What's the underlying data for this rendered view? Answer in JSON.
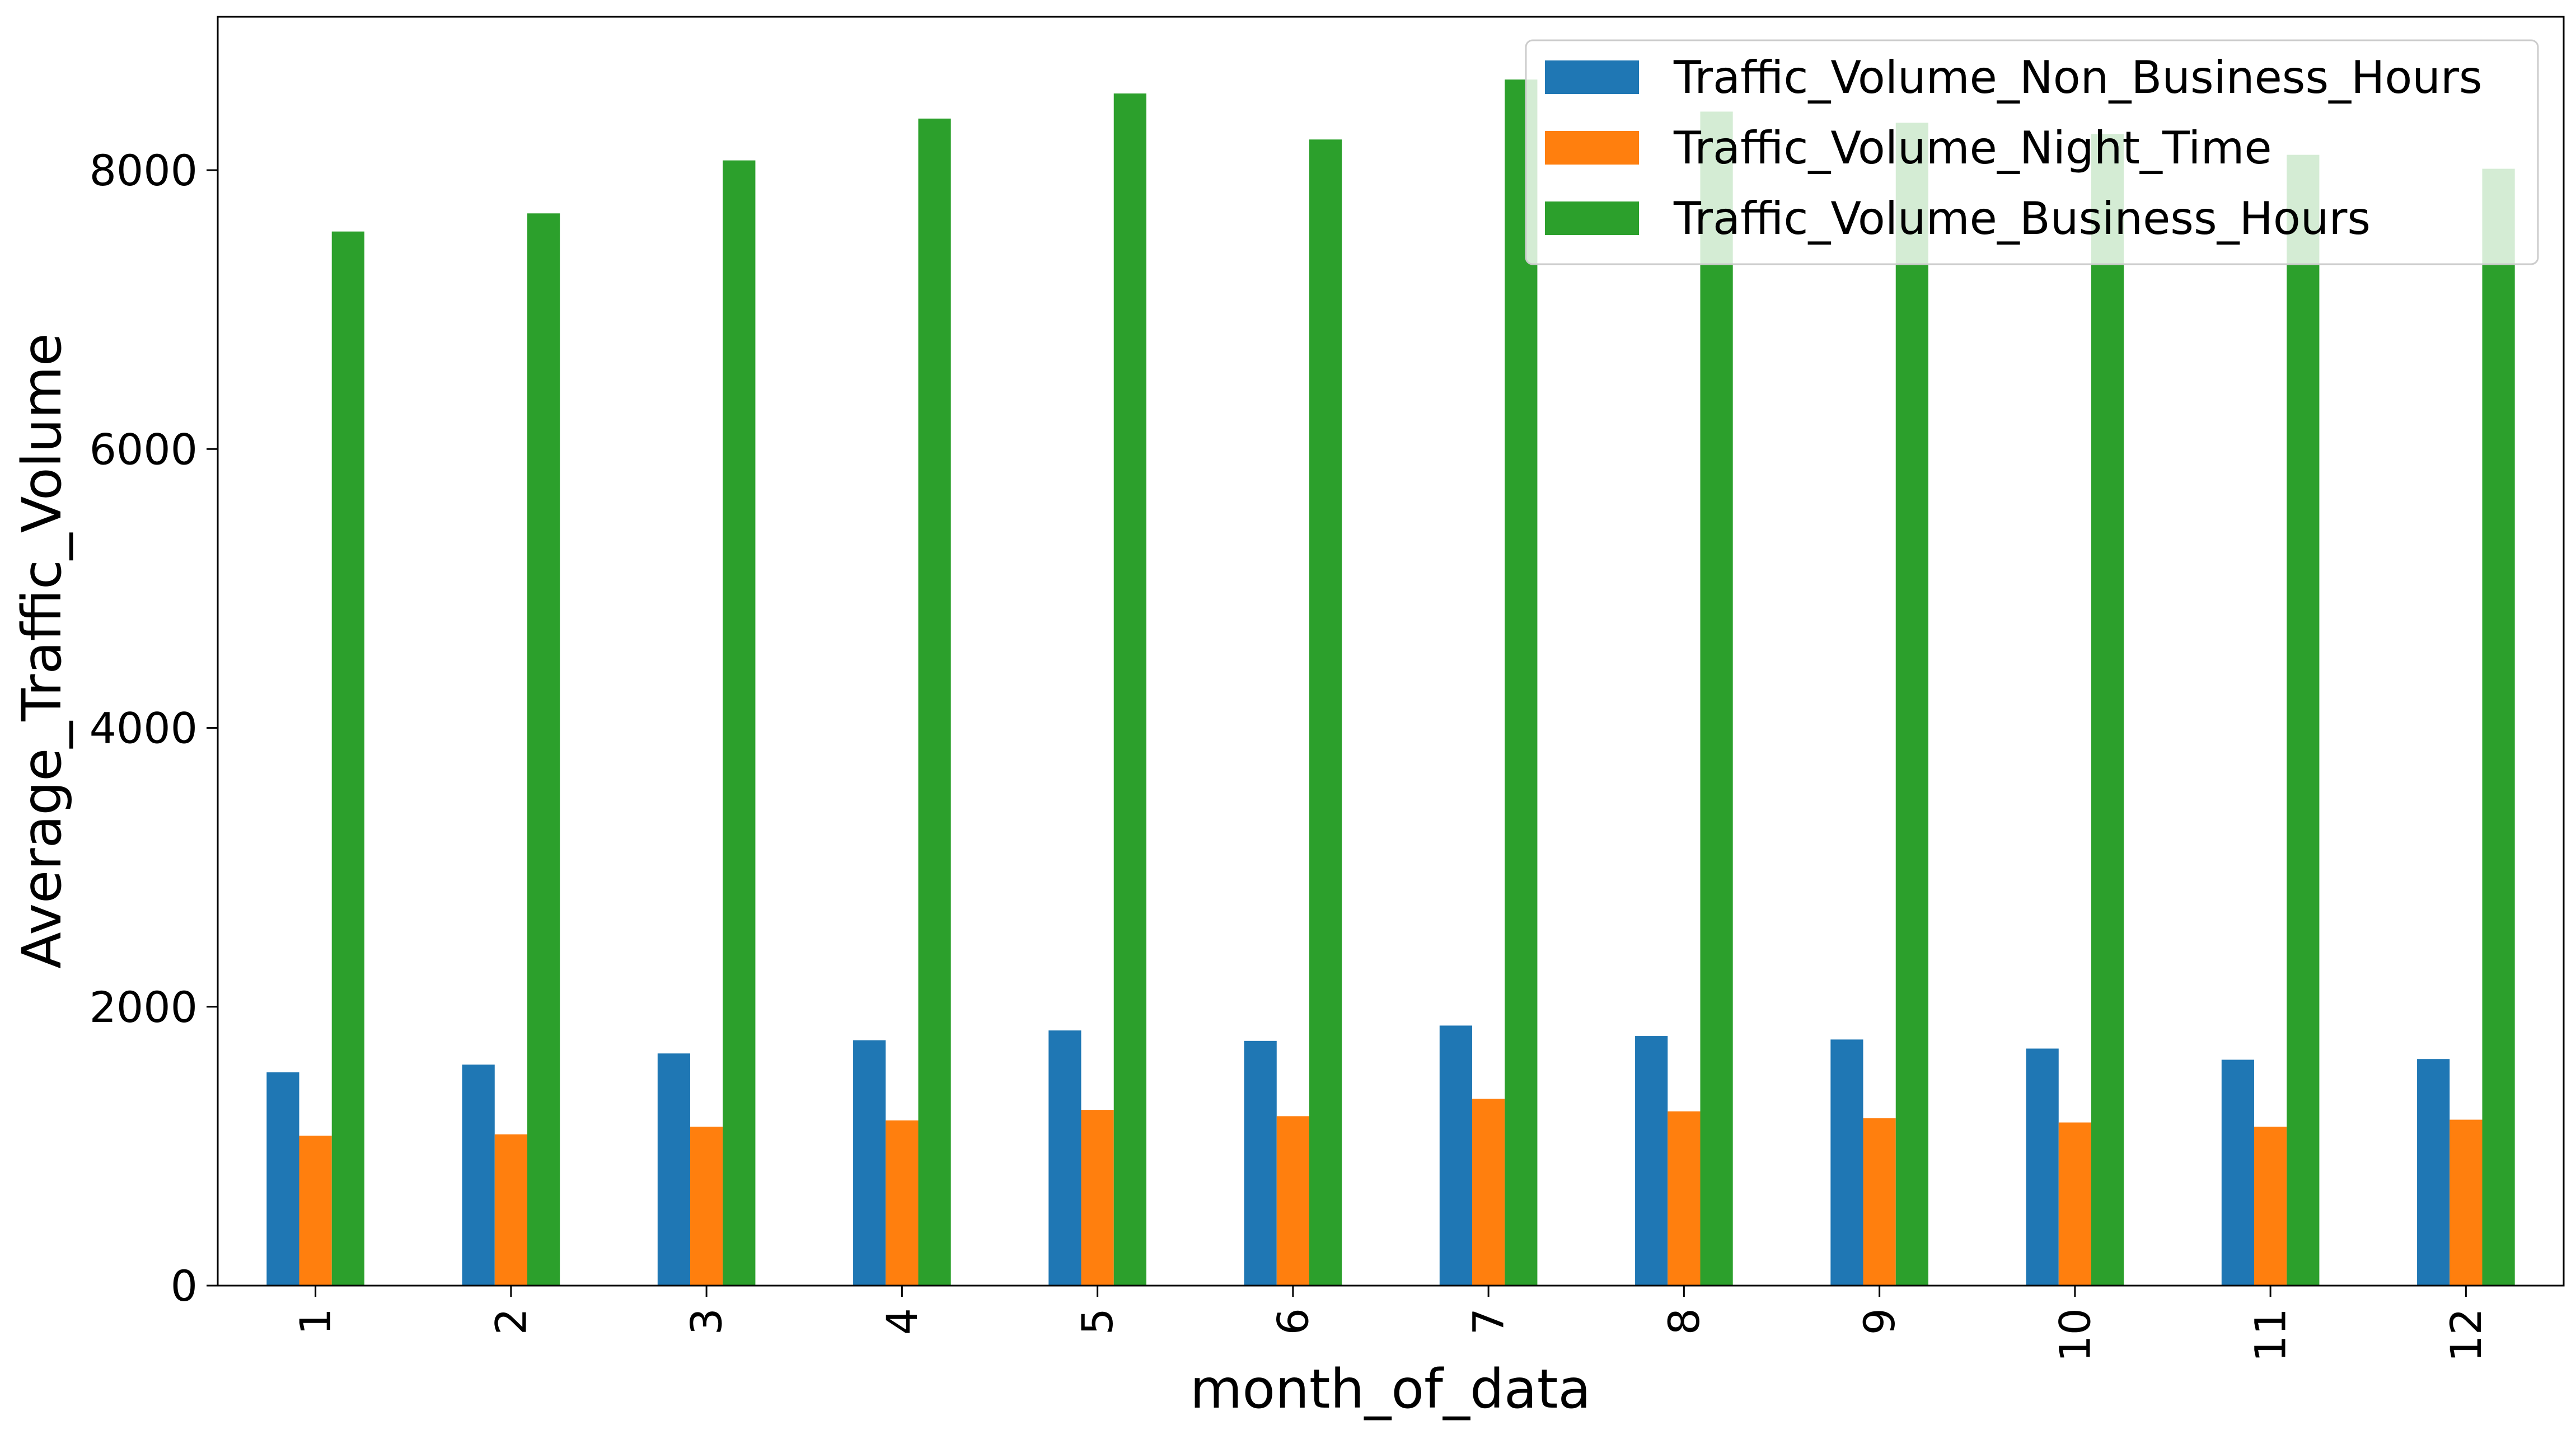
{
  "chart_data": {
    "type": "bar",
    "xlabel": "month_of_data",
    "ylabel": "Average_Traffic_Volume",
    "categories": [
      "1",
      "2",
      "3",
      "4",
      "5",
      "6",
      "7",
      "8",
      "9",
      "10",
      "11",
      "12"
    ],
    "ylim": [
      0,
      9100
    ],
    "yticks": [
      "0",
      "2000",
      "4000",
      "6000",
      "8000"
    ],
    "grid": false,
    "legend_position": "top-right",
    "series": [
      {
        "name": "Traffic_Volume_Non_Business_Hours",
        "color": "#1f77b4",
        "values": [
          1530,
          1585,
          1665,
          1760,
          1830,
          1755,
          1865,
          1790,
          1765,
          1700,
          1620,
          1625
        ]
      },
      {
        "name": "Traffic_Volume_Night_Time",
        "color": "#ff7f0e",
        "values": [
          1075,
          1085,
          1140,
          1185,
          1260,
          1215,
          1340,
          1250,
          1200,
          1170,
          1140,
          1190
        ]
      },
      {
        "name": "Traffic_Volume_Business_Hours",
        "color": "#2ca02c",
        "values": [
          7560,
          7690,
          8070,
          8370,
          8550,
          8220,
          8650,
          8420,
          8340,
          8260,
          8110,
          8010
        ]
      }
    ]
  }
}
